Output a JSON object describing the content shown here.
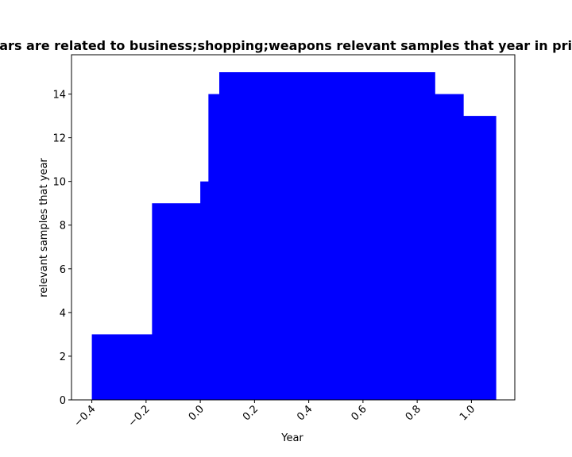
{
  "chart_data": {
    "type": "bar",
    "title": "Years are related to business;shopping;weapons relevant samples that year in private",
    "xlabel": "Year",
    "ylabel": "relevant samples that year",
    "xlim": [
      -0.475,
      1.16
    ],
    "ylim": [
      0,
      15.8
    ],
    "color": "#0000ff",
    "grid": false,
    "xticks": [
      -0.4,
      -0.2,
      0.0,
      0.2,
      0.4,
      0.6,
      0.8,
      1.0
    ],
    "xtick_labels": [
      "−0.4",
      "−0.2",
      "0.0",
      "0.2",
      "0.4",
      "0.6",
      "0.8",
      "1.0"
    ],
    "yticks": [
      0,
      2,
      4,
      6,
      8,
      10,
      12,
      14
    ],
    "ytick_labels": [
      "0",
      "2",
      "4",
      "6",
      "8",
      "10",
      "12",
      "14"
    ],
    "bars": [
      {
        "x0": -0.4,
        "x1": -0.178,
        "value": 3
      },
      {
        "x0": -0.178,
        "x1": 0.0,
        "value": 9
      },
      {
        "x0": 0.0,
        "x1": 0.03,
        "value": 10
      },
      {
        "x0": 0.03,
        "x1": 0.07,
        "value": 14
      },
      {
        "x0": 0.07,
        "x1": 0.865,
        "value": 15
      },
      {
        "x0": 0.865,
        "x1": 0.97,
        "value": 14
      },
      {
        "x0": 0.97,
        "x1": 1.09,
        "value": 13
      }
    ]
  }
}
